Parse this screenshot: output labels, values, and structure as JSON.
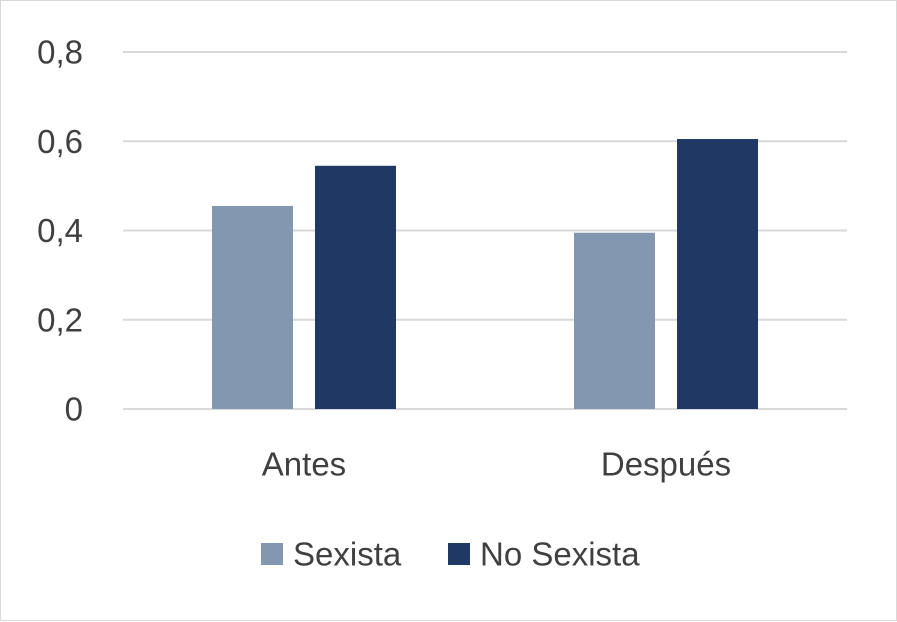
{
  "chart_data": {
    "type": "bar",
    "title": "",
    "xlabel": "",
    "ylabel": "",
    "categories": [
      "Antes",
      "Después"
    ],
    "series": [
      {
        "name": "Sexista",
        "values": [
          0.455,
          0.395
        ],
        "color": "#8497b0"
      },
      {
        "name": "No Sexista",
        "values": [
          0.545,
          0.605
        ],
        "color": "#203864"
      }
    ],
    "ylim": [
      0,
      0.8
    ],
    "yticks": [
      0,
      0.2,
      0.4,
      0.6,
      0.8
    ],
    "ytick_labels": [
      "0",
      "0,2",
      "0,4",
      "0,6",
      "0,8"
    ],
    "grid": true,
    "legend_position": "bottom",
    "colors": {
      "gridline": "#d9d9d9",
      "text": "#404040",
      "border": "#d9d9d9"
    }
  }
}
